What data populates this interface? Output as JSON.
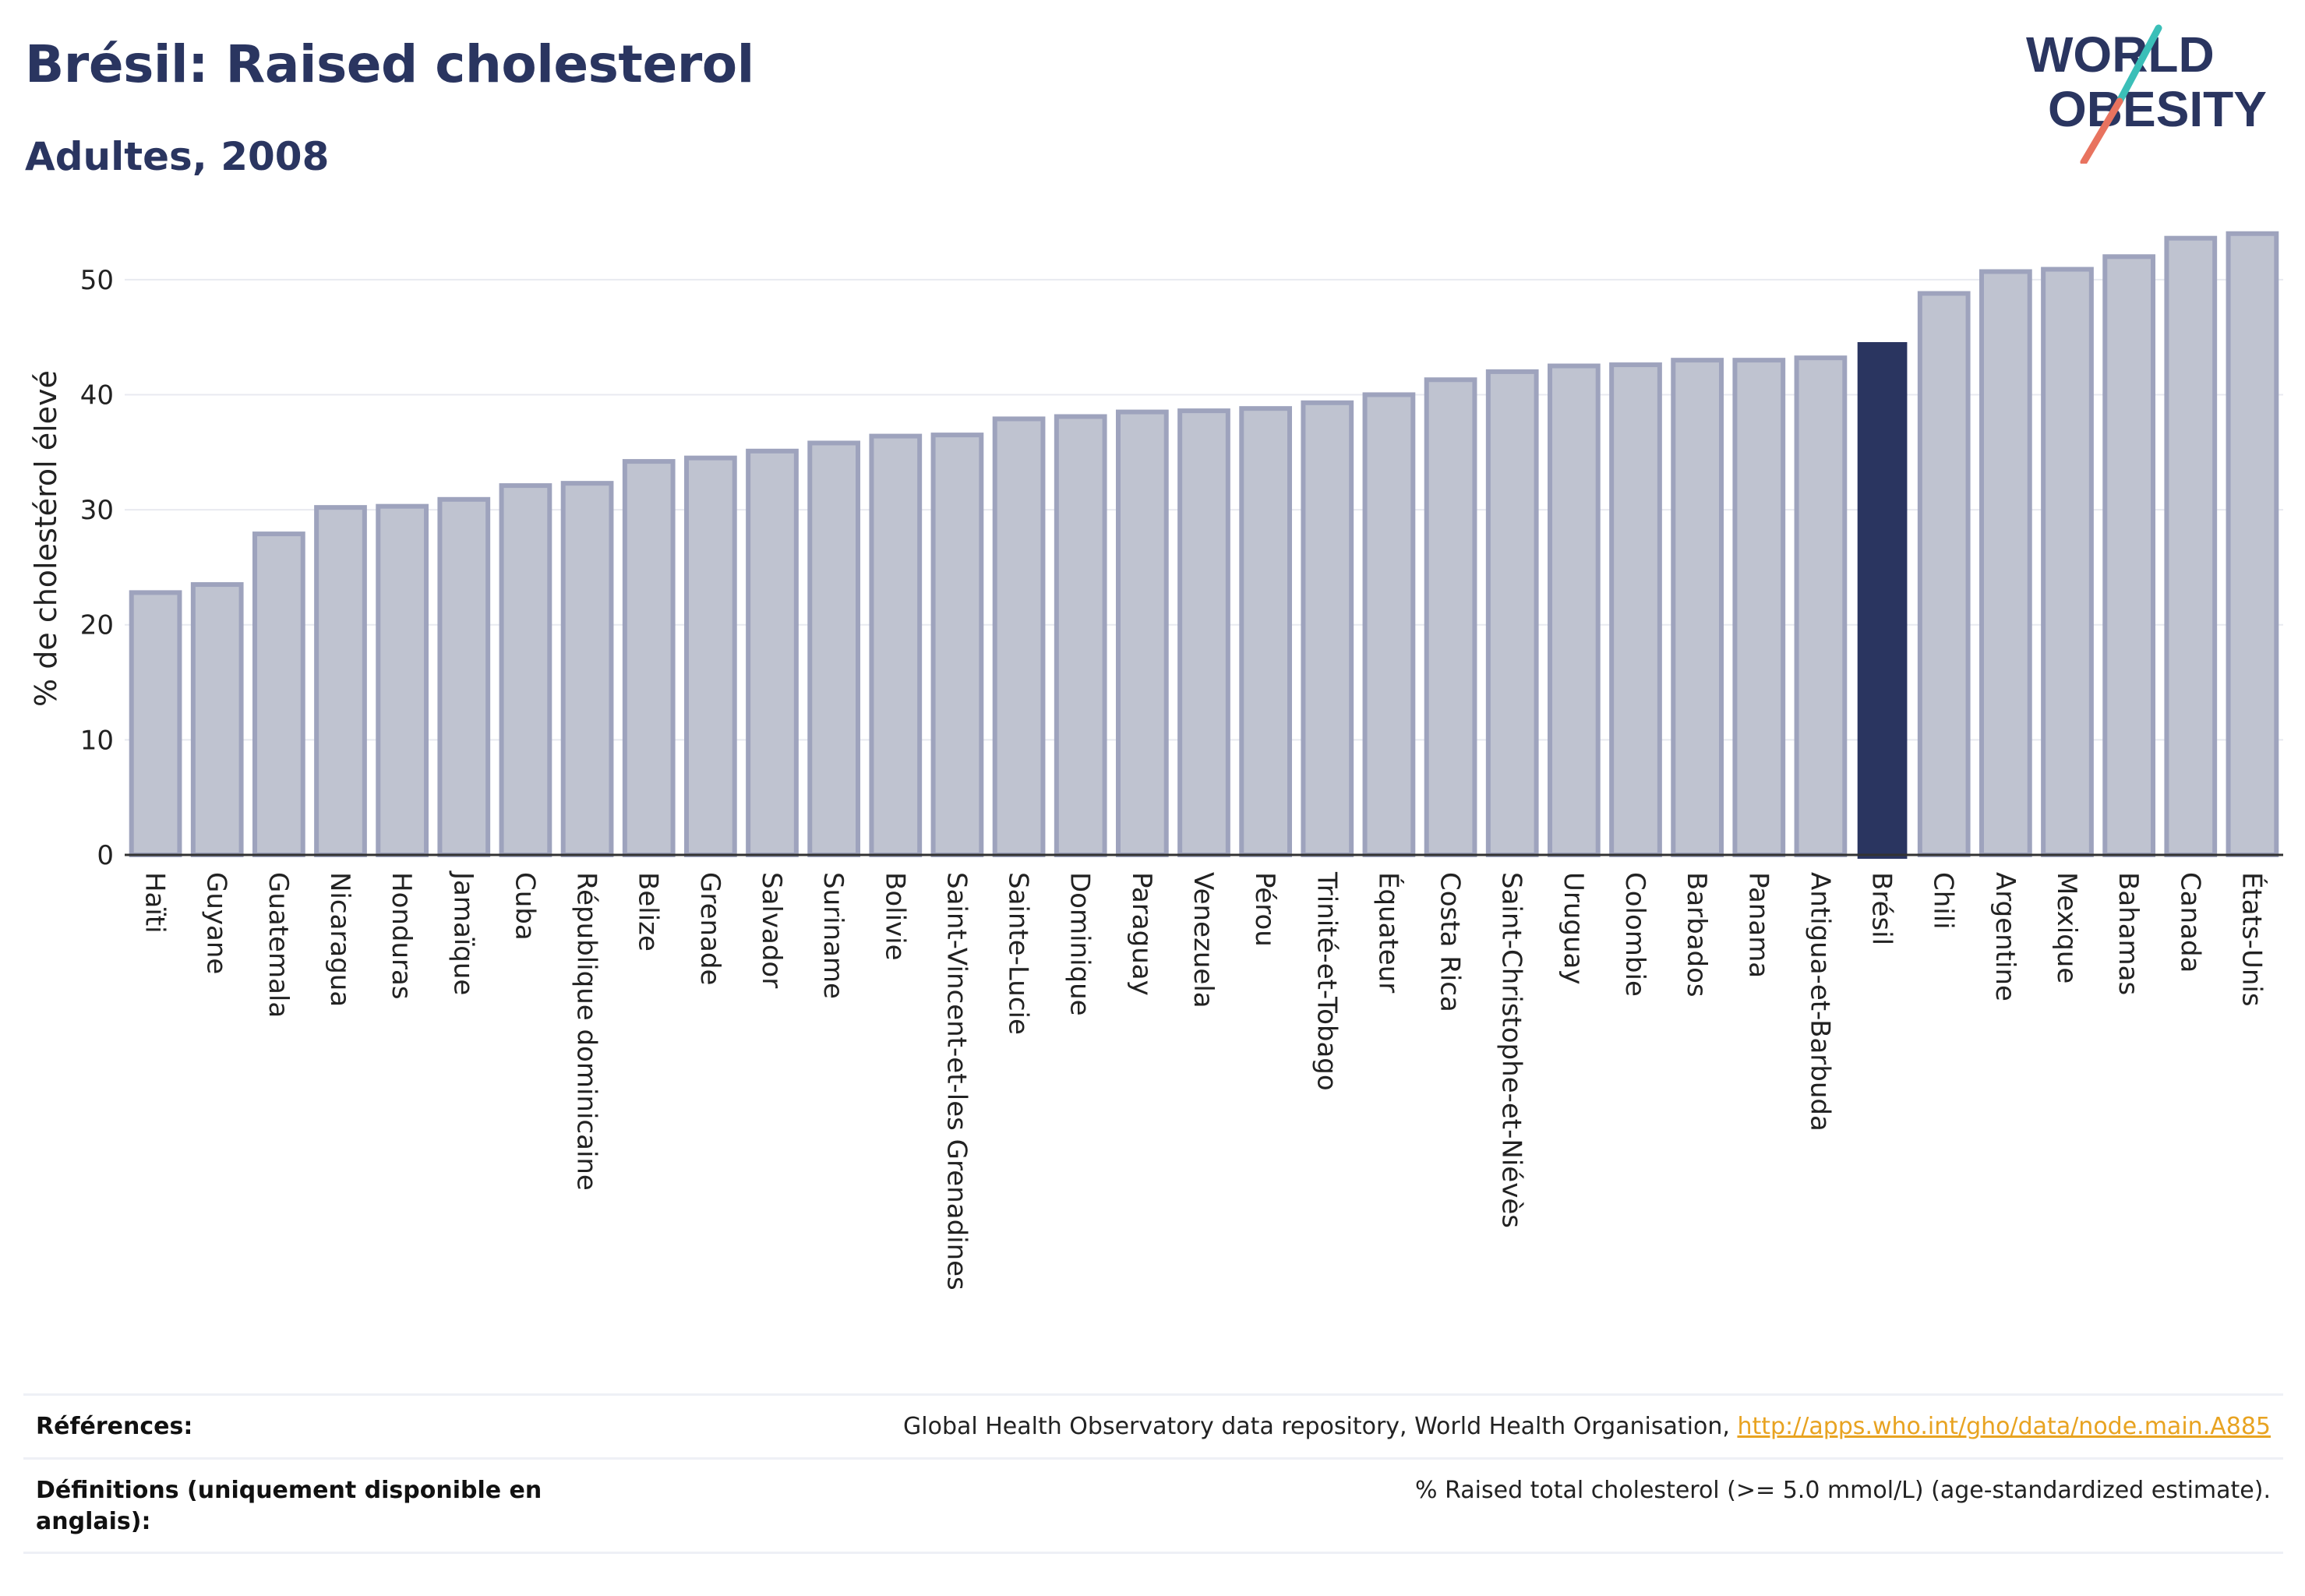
{
  "header": {
    "title": "Brésil: Raised cholesterol",
    "subtitle": "Adultes, 2008",
    "logo_line1": "WORLD",
    "logo_line2": "OBESITY"
  },
  "colors": {
    "bar": "#bfc3d0",
    "bar_edge": "#9ea3bd",
    "highlight": "#2a3560",
    "accent_teal": "#3bbfb8",
    "accent_coral": "#e8735f"
  },
  "chart_data": {
    "type": "bar",
    "ylabel": "% de cholestérol élevé",
    "ylim": [
      0,
      55
    ],
    "yticks": [
      0,
      10,
      20,
      30,
      40,
      50
    ],
    "grid": true,
    "highlight": "Brésil",
    "categories": [
      "Haïti",
      "Guyane",
      "Guatemala",
      "Nicaragua",
      "Honduras",
      "Jamaïque",
      "Cuba",
      "République dominicaine",
      "Belize",
      "Grenade",
      "Salvador",
      "Suriname",
      "Bolivie",
      "Saint-Vincent-et-les Grenadines",
      "Sainte-Lucie",
      "Dominique",
      "Paraguay",
      "Venezuela",
      "Pérou",
      "Trinité-et-Tobago",
      "Équateur",
      "Costa Rica",
      "Saint-Christophe-et-Niévès",
      "Uruguay",
      "Colombie",
      "Barbados",
      "Panama",
      "Antigua-et-Barbuda",
      "Brésil",
      "Chili",
      "Argentine",
      "Mexique",
      "Bahamas",
      "Canada",
      "États-Unis"
    ],
    "values": [
      22.8,
      23.5,
      27.9,
      30.2,
      30.3,
      30.9,
      32.1,
      32.3,
      34.2,
      34.5,
      35.1,
      35.8,
      36.4,
      36.5,
      37.9,
      38.1,
      38.5,
      38.6,
      38.8,
      39.3,
      40.0,
      41.3,
      42.0,
      42.5,
      42.6,
      43.0,
      43.0,
      43.2,
      44.5,
      48.8,
      50.7,
      50.9,
      52.0,
      53.6,
      54.0
    ]
  },
  "footer": {
    "references_label": "Références:",
    "references_text": "Global Health Observatory data repository, World Health Organisation, ",
    "references_link": "http://apps.who.int/gho/data/node.main.A885",
    "definitions_label": "Définitions (uniquement disponible en anglais):",
    "definitions_text": "% Raised total cholesterol (>= 5.0 mmol/L) (age-standardized estimate)."
  }
}
